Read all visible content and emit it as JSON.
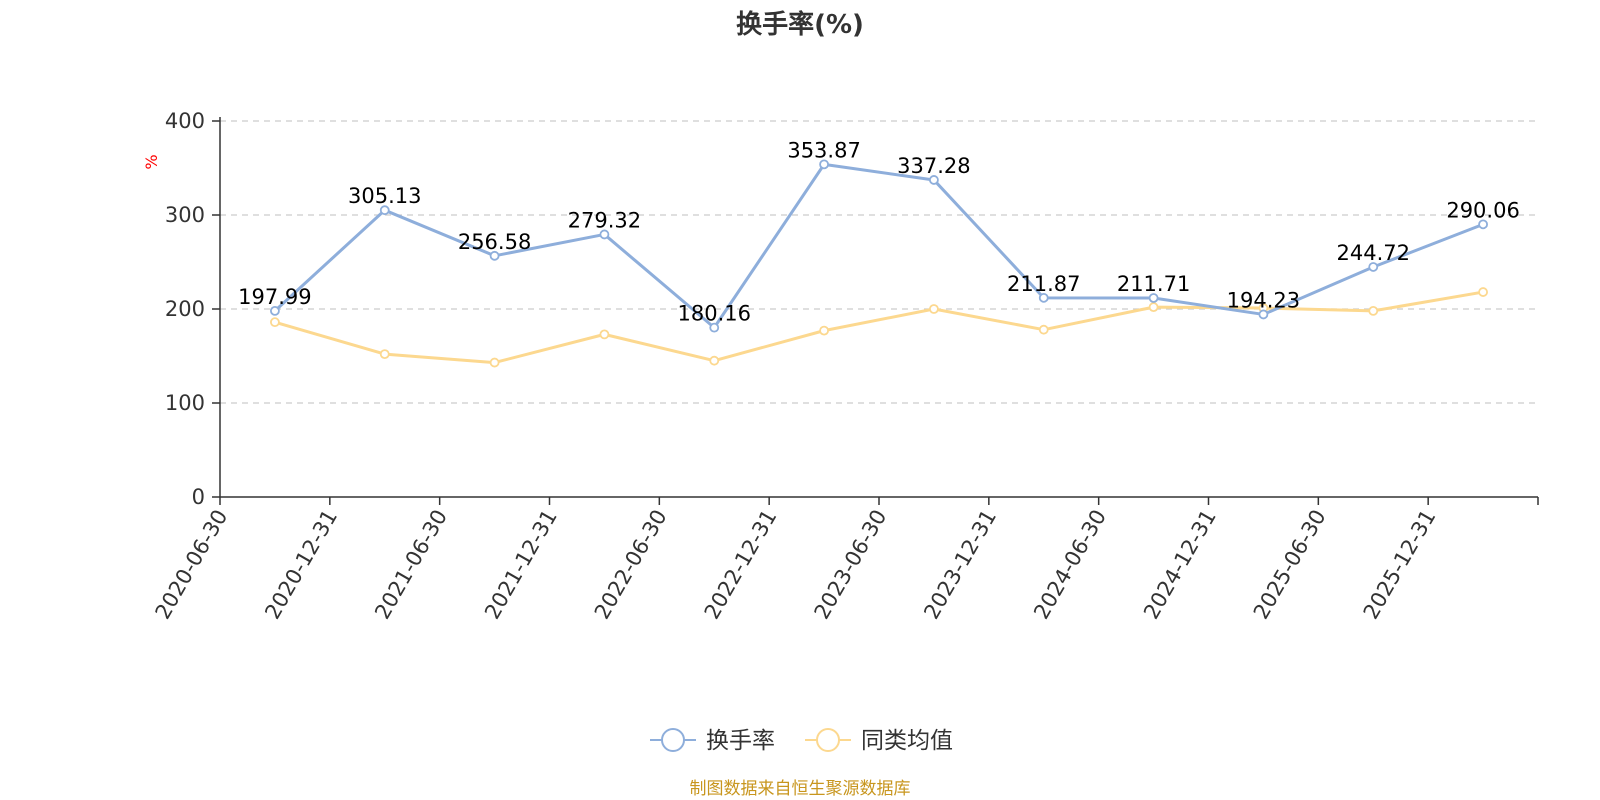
{
  "chart_data": {
    "type": "line",
    "title": "换手率(%)",
    "ylabel": "%",
    "xlabel": "",
    "ylim": [
      0,
      400
    ],
    "yticks": [
      0,
      100,
      200,
      300,
      400
    ],
    "grid": true,
    "legend_position": "bottom-center",
    "categories": [
      "2020-06-30",
      "2020-12-31",
      "2021-06-30",
      "2021-12-31",
      "2022-06-30",
      "2022-12-31",
      "2023-06-30",
      "2023-12-31",
      "2024-06-30",
      "2024-12-31",
      "2025-06-30",
      "2025-12-31"
    ],
    "series": [
      {
        "name": "换手率",
        "color": "#8eaedb",
        "values": [
          197.99,
          305.13,
          256.58,
          279.32,
          180.16,
          353.87,
          337.28,
          211.87,
          211.71,
          194.23,
          244.72,
          290.06
        ],
        "labels": [
          "197.99",
          "305.13",
          "256.58",
          "279.32",
          "180.16",
          "353.87",
          "337.28",
          "211.87",
          "211.71",
          "194.23",
          "244.72",
          "290.06"
        ]
      },
      {
        "name": "同类均值",
        "color": "#fcd88f",
        "values": [
          186,
          152,
          143,
          173,
          145,
          177,
          200,
          178,
          202,
          201,
          198,
          218
        ]
      }
    ],
    "source": "制图数据来自恒生聚源数据库"
  }
}
